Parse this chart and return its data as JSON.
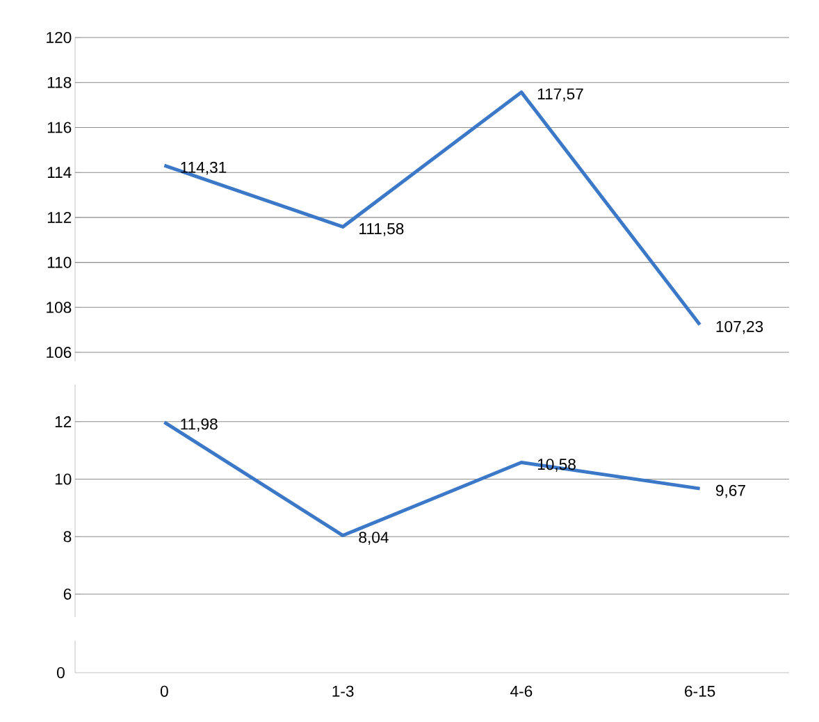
{
  "chart_data": [
    {
      "type": "line",
      "categories": [
        null,
        null,
        null,
        null
      ],
      "values": [
        114.31,
        111.58,
        117.57,
        107.23
      ],
      "value_labels": [
        "114,31",
        "111,58",
        "117,57",
        "107,23"
      ],
      "color": "#3c78c8",
      "ylim": [
        105.6,
        120
      ],
      "yticks": [
        106,
        108,
        110,
        112,
        114,
        116,
        118,
        120
      ],
      "grid": "y",
      "tick_labels": "y"
    },
    {
      "type": "line",
      "categories": [
        null,
        null,
        null,
        null
      ],
      "values": [
        11.98,
        8.04,
        10.58,
        9.67
      ],
      "value_labels": [
        "11,98",
        "8,04",
        "10,58",
        "9,67"
      ],
      "color": "#3c78c8",
      "ylim": [
        5.2,
        13.3
      ],
      "yticks": [
        6,
        8,
        10,
        12
      ],
      "grid": "y",
      "tick_labels": "y"
    },
    {
      "type": "other",
      "categories": [
        "0",
        "1-3",
        "4-6",
        "6-15"
      ],
      "annotations": [
        "0"
      ]
    }
  ]
}
